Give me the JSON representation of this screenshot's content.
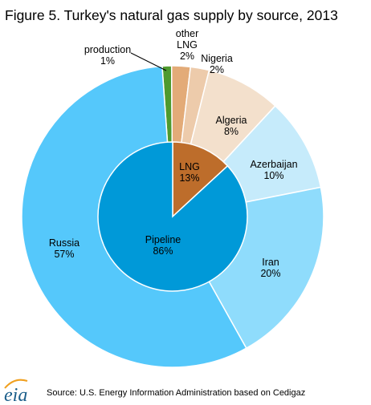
{
  "chart_data": {
    "type": "pie",
    "title": "Figure 5. Turkey's natural gas supply by source,  2013",
    "outer_ring": [
      {
        "label": "production",
        "pct_text": "1%",
        "value": 1,
        "color": "#4e9a2e"
      },
      {
        "label": "other LNG",
        "pct_text": "2%",
        "value": 2,
        "color": "#e3ab78"
      },
      {
        "label": "Nigeria",
        "pct_text": "2%",
        "value": 2,
        "color": "#edcbab"
      },
      {
        "label": "Algeria",
        "pct_text": "8%",
        "value": 8,
        "color": "#f3e0cc"
      },
      {
        "label": "Azerbaijan",
        "pct_text": "10%",
        "value": 10,
        "color": "#c6ebfb"
      },
      {
        "label": "Iran",
        "pct_text": "20%",
        "value": 20,
        "color": "#8fdcfc"
      },
      {
        "label": "Russia",
        "pct_text": "57%",
        "value": 57,
        "color": "#55c8fb"
      }
    ],
    "inner_ring": [
      {
        "label": "LNG",
        "pct_text": "13%",
        "value": 13,
        "color": "#bd6d2b"
      },
      {
        "label": "Pipeline",
        "pct_text": "86%",
        "value": 86,
        "color": "#0099d8"
      }
    ]
  },
  "source": "Source: U.S. Energy Information Administration based on Cedigaz",
  "logo_text": "eia"
}
